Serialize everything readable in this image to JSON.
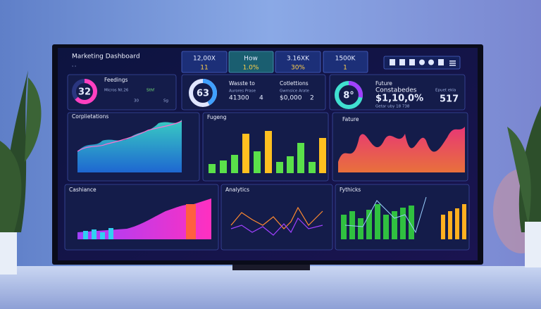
{
  "header": {
    "title": "Marketing Dashboard"
  },
  "kpis": [
    {
      "value": "12,00X",
      "sub": "11"
    },
    {
      "value": "How",
      "sub": "1.0%"
    },
    {
      "value": "3.16XK",
      "sub": "30%"
    },
    {
      "value": "1500K",
      "sub": "1"
    }
  ],
  "cards": [
    {
      "donut": "32",
      "title": "Feedings",
      "lines": [
        "Micros Nt.26",
        "Sthf",
        "30",
        "Sg"
      ]
    },
    {
      "donut": "63",
      "title": "Wasste to",
      "lines": [
        "Aurores Prase",
        "41300",
        "4",
        "Cotlettions",
        "Gwrnsice Arate",
        "$0,000",
        "2"
      ]
    },
    {
      "donut": "8°",
      "title": "Future",
      "lines": [
        "Constabedes",
        "$1,10,0%",
        "Getar uby 18 738",
        "Epuet ekla",
        "517"
      ]
    }
  ],
  "panels": [
    {
      "title": "Corplietations"
    },
    {
      "title": "Fugeng"
    },
    {
      "title": "Fature"
    },
    {
      "title": "Cashiance"
    },
    {
      "title": "Analytics"
    },
    {
      "title": "Fythicks"
    }
  ]
}
